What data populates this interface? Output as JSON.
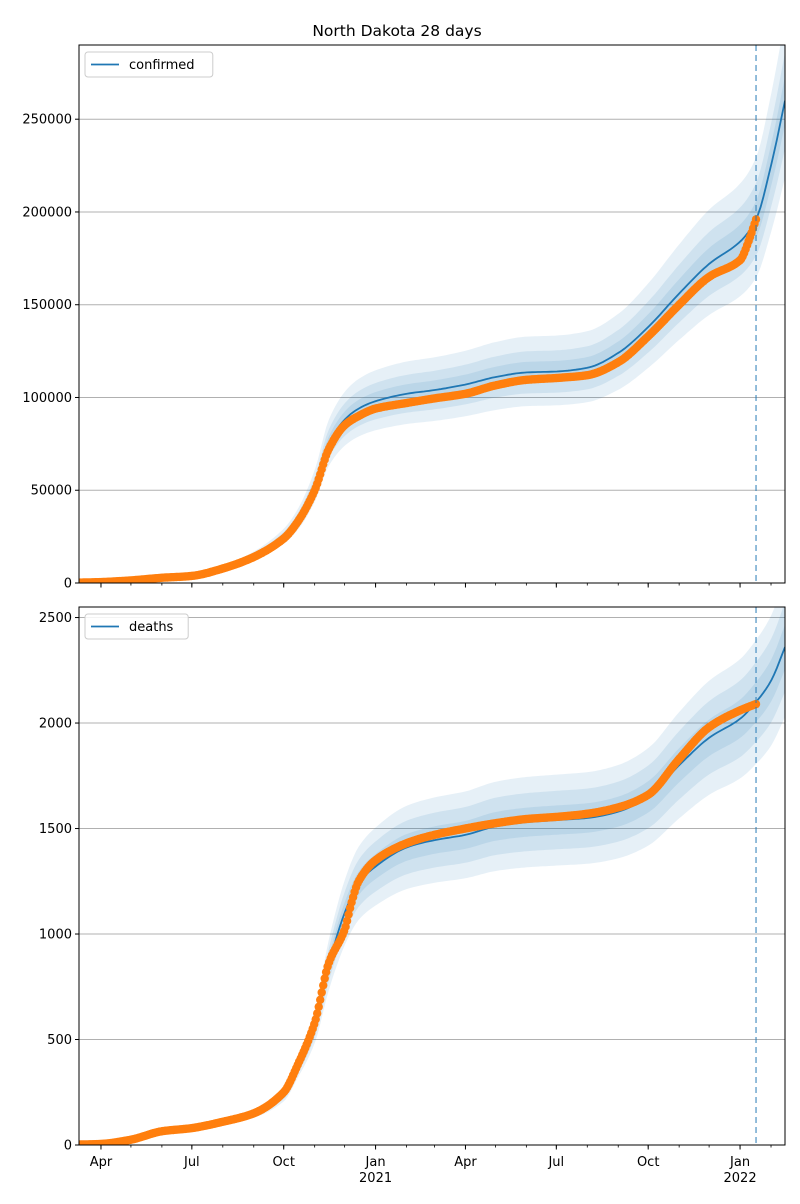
{
  "figure": {
    "title": "North Dakota 28 days"
  },
  "colors": {
    "model_line": "#1f77b4",
    "band": "#1f77b4",
    "observed": "#ff7f0e",
    "forecast_marker": "#1f77b4",
    "grid": "#b0b0b0"
  },
  "chart_data": [
    {
      "type": "line",
      "legend_position": "upper-left",
      "grid": "horizontal",
      "x_ticks": [
        {
          "date": "2020-04-01",
          "label": "Apr",
          "sub": ""
        },
        {
          "date": "2020-07-01",
          "label": "Jul",
          "sub": ""
        },
        {
          "date": "2020-10-01",
          "label": "Oct",
          "sub": ""
        },
        {
          "date": "2021-01-01",
          "label": "Jan",
          "sub": "2021"
        },
        {
          "date": "2021-04-01",
          "label": "Apr",
          "sub": ""
        },
        {
          "date": "2021-07-01",
          "label": "Jul",
          "sub": ""
        },
        {
          "date": "2021-10-01",
          "label": "Oct",
          "sub": ""
        },
        {
          "date": "2022-01-01",
          "label": "Jan",
          "sub": "2022"
        }
      ],
      "xlim": [
        "2020-03-10",
        "2022-02-15"
      ],
      "ylim": [
        0,
        290000
      ],
      "y_ticks": [
        0,
        50000,
        100000,
        150000,
        200000,
        250000
      ],
      "y_tick_labels": [
        "0",
        "50000",
        "100000",
        "150000",
        "200000",
        "250000"
      ],
      "forecast_start": "2022-01-17",
      "series": [
        {
          "name": "confirmed",
          "kind": "model",
          "points": [
            [
              "2020-03-10",
              200
            ],
            [
              "2020-04-01",
              600
            ],
            [
              "2020-05-01",
              1800
            ],
            [
              "2020-06-01",
              3000
            ],
            [
              "2020-07-01",
              4000
            ],
            [
              "2020-08-01",
              8000
            ],
            [
              "2020-09-01",
              14500
            ],
            [
              "2020-10-01",
              25000
            ],
            [
              "2020-10-15",
              34000
            ],
            [
              "2020-11-01",
              52000
            ],
            [
              "2020-11-15",
              75000
            ],
            [
              "2020-12-01",
              88000
            ],
            [
              "2020-12-15",
              94000
            ],
            [
              "2021-01-01",
              98000
            ],
            [
              "2021-02-01",
              102000
            ],
            [
              "2021-03-01",
              104000
            ],
            [
              "2021-04-01",
              107000
            ],
            [
              "2021-05-01",
              111000
            ],
            [
              "2021-06-01",
              113500
            ],
            [
              "2021-07-01",
              114000
            ],
            [
              "2021-08-01",
              116000
            ],
            [
              "2021-09-01",
              124000
            ],
            [
              "2021-10-01",
              138000
            ],
            [
              "2021-11-01",
              156000
            ],
            [
              "2021-12-01",
              172000
            ],
            [
              "2022-01-01",
              184000
            ],
            [
              "2022-01-17",
              196000
            ],
            [
              "2022-02-01",
              225000
            ],
            [
              "2022-02-15",
              260000
            ]
          ],
          "bands": [
            {
              "lower_pct": 0.16,
              "upper_pct": 0.17
            },
            {
              "lower_pct": 0.1,
              "upper_pct": 0.1
            },
            {
              "lower_pct": 0.05,
              "upper_pct": 0.05
            }
          ]
        },
        {
          "name": "",
          "kind": "observed",
          "points": [
            [
              "2020-03-10",
              200
            ],
            [
              "2020-04-01",
              500
            ],
            [
              "2020-05-01",
              1400
            ],
            [
              "2020-06-01",
              2800
            ],
            [
              "2020-07-01",
              3800
            ],
            [
              "2020-08-01",
              7800
            ],
            [
              "2020-09-01",
              14000
            ],
            [
              "2020-10-01",
              24000
            ],
            [
              "2020-10-15",
              33000
            ],
            [
              "2020-11-01",
              50000
            ],
            [
              "2020-11-15",
              72000
            ],
            [
              "2020-12-01",
              85000
            ],
            [
              "2020-12-15",
              90000
            ],
            [
              "2021-01-01",
              94000
            ],
            [
              "2021-02-01",
              97000
            ],
            [
              "2021-03-01",
              99500
            ],
            [
              "2021-04-01",
              102000
            ],
            [
              "2021-05-01",
              106500
            ],
            [
              "2021-06-01",
              109500
            ],
            [
              "2021-07-01",
              110500
            ],
            [
              "2021-08-01",
              112000
            ],
            [
              "2021-09-01",
              119000
            ],
            [
              "2021-10-01",
              133000
            ],
            [
              "2021-11-01",
              150000
            ],
            [
              "2021-12-01",
              165000
            ],
            [
              "2022-01-01",
              174000
            ],
            [
              "2022-01-10",
              185000
            ],
            [
              "2022-01-17",
              196000
            ]
          ]
        }
      ]
    },
    {
      "type": "line",
      "legend_position": "upper-left",
      "grid": "horizontal",
      "x_ticks": [
        {
          "date": "2020-04-01",
          "label": "Apr",
          "sub": ""
        },
        {
          "date": "2020-07-01",
          "label": "Jul",
          "sub": ""
        },
        {
          "date": "2020-10-01",
          "label": "Oct",
          "sub": ""
        },
        {
          "date": "2021-01-01",
          "label": "Jan",
          "sub": "2021"
        },
        {
          "date": "2021-04-01",
          "label": "Apr",
          "sub": ""
        },
        {
          "date": "2021-07-01",
          "label": "Jul",
          "sub": ""
        },
        {
          "date": "2021-10-01",
          "label": "Oct",
          "sub": ""
        },
        {
          "date": "2022-01-01",
          "label": "Jan",
          "sub": "2022"
        }
      ],
      "xlim": [
        "2020-03-10",
        "2022-02-15"
      ],
      "ylim": [
        0,
        2550
      ],
      "y_ticks": [
        0,
        500,
        1000,
        1500,
        2000,
        2500
      ],
      "y_tick_labels": [
        "0",
        "500",
        "1000",
        "1500",
        "2000",
        "2500"
      ],
      "forecast_start": "2022-01-17",
      "series": [
        {
          "name": "deaths",
          "kind": "model",
          "points": [
            [
              "2020-03-10",
              2
            ],
            [
              "2020-04-01",
              5
            ],
            [
              "2020-05-01",
              25
            ],
            [
              "2020-06-01",
              60
            ],
            [
              "2020-07-01",
              80
            ],
            [
              "2020-08-01",
              110
            ],
            [
              "2020-09-01",
              150
            ],
            [
              "2020-10-01",
              240
            ],
            [
              "2020-10-15",
              370
            ],
            [
              "2020-11-01",
              560
            ],
            [
              "2020-11-15",
              850
            ],
            [
              "2020-12-01",
              1100
            ],
            [
              "2020-12-15",
              1240
            ],
            [
              "2021-01-01",
              1320
            ],
            [
              "2021-02-01",
              1410
            ],
            [
              "2021-03-01",
              1445
            ],
            [
              "2021-04-01",
              1470
            ],
            [
              "2021-05-01",
              1510
            ],
            [
              "2021-06-01",
              1530
            ],
            [
              "2021-07-01",
              1540
            ],
            [
              "2021-08-01",
              1550
            ],
            [
              "2021-09-01",
              1580
            ],
            [
              "2021-10-01",
              1650
            ],
            [
              "2021-11-01",
              1800
            ],
            [
              "2021-12-01",
              1930
            ],
            [
              "2022-01-01",
              2020
            ],
            [
              "2022-01-17",
              2100
            ],
            [
              "2022-02-01",
              2200
            ],
            [
              "2022-02-15",
              2360
            ]
          ],
          "bands": [
            {
              "lower_pct": 0.14,
              "upper_pct": 0.14
            },
            {
              "lower_pct": 0.09,
              "upper_pct": 0.09
            },
            {
              "lower_pct": 0.045,
              "upper_pct": 0.045
            }
          ]
        },
        {
          "name": "",
          "kind": "observed",
          "points": [
            [
              "2020-03-10",
              2
            ],
            [
              "2020-04-01",
              5
            ],
            [
              "2020-05-01",
              25
            ],
            [
              "2020-06-01",
              65
            ],
            [
              "2020-07-01",
              80
            ],
            [
              "2020-08-01",
              110
            ],
            [
              "2020-09-01",
              150
            ],
            [
              "2020-10-01",
              250
            ],
            [
              "2020-10-15",
              380
            ],
            [
              "2020-11-01",
              580
            ],
            [
              "2020-11-15",
              860
            ],
            [
              "2020-12-01",
              1020
            ],
            [
              "2020-12-08",
              1150
            ],
            [
              "2020-12-15",
              1250
            ],
            [
              "2021-01-01",
              1350
            ],
            [
              "2021-02-01",
              1430
            ],
            [
              "2021-03-01",
              1470
            ],
            [
              "2021-04-01",
              1500
            ],
            [
              "2021-05-01",
              1525
            ],
            [
              "2021-06-01",
              1545
            ],
            [
              "2021-07-01",
              1555
            ],
            [
              "2021-08-01",
              1570
            ],
            [
              "2021-09-01",
              1600
            ],
            [
              "2021-10-01",
              1660
            ],
            [
              "2021-11-01",
              1830
            ],
            [
              "2021-12-01",
              1980
            ],
            [
              "2022-01-01",
              2060
            ],
            [
              "2022-01-17",
              2090
            ]
          ]
        }
      ]
    }
  ]
}
